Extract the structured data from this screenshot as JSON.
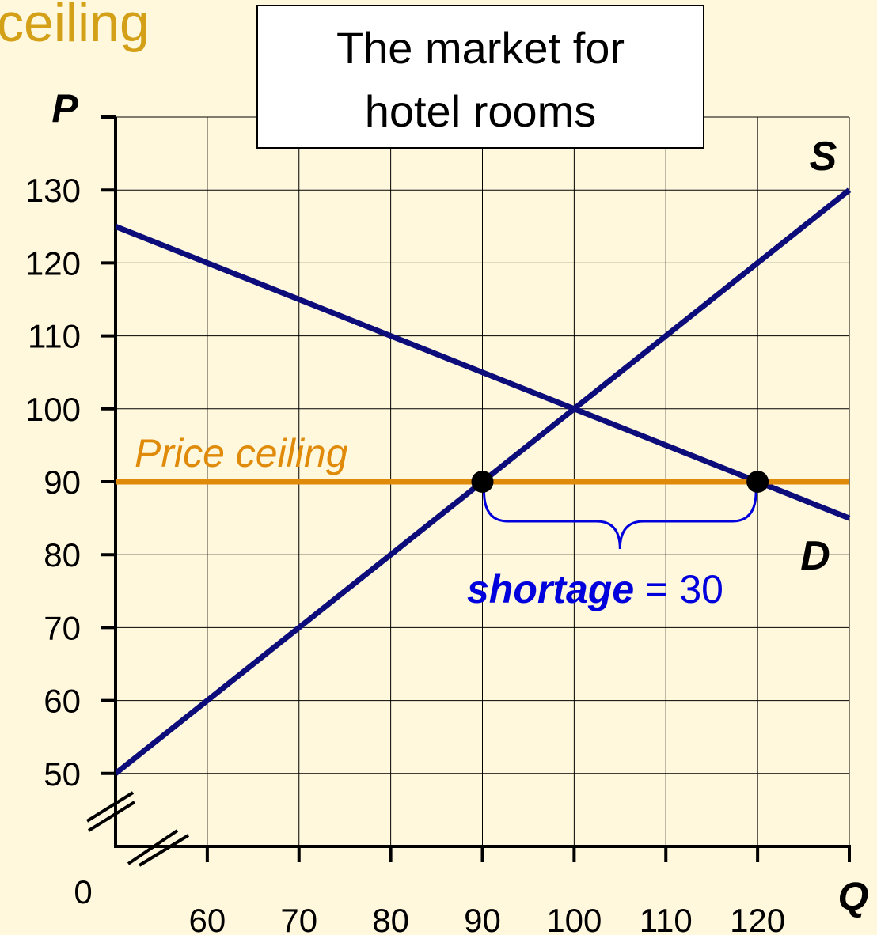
{
  "heading": "ceiling",
  "chart_data": {
    "type": "line",
    "title": [
      "The market for",
      "hotel rooms"
    ],
    "x_label": "Q",
    "y_label": "P",
    "origin_label": "0",
    "x": [
      50,
      130
    ],
    "xlim": [
      50,
      130
    ],
    "ylim": [
      40,
      140
    ],
    "xticks": [
      60,
      70,
      80,
      90,
      100,
      110,
      120
    ],
    "yticks": [
      50,
      60,
      70,
      80,
      90,
      100,
      110,
      120,
      130
    ],
    "grid": true,
    "series": [
      {
        "name": "S",
        "color": "#0c0c7a",
        "values": [
          50,
          130
        ]
      },
      {
        "name": "D",
        "color": "#0c0c7a",
        "values": [
          125,
          85
        ]
      },
      {
        "name": "Price ceiling",
        "color": "#e08a0a",
        "values": [
          90,
          90
        ]
      }
    ],
    "points": {
      "x": [
        90,
        120
      ],
      "y": [
        90,
        90
      ],
      "color": "#000000"
    },
    "shortage": {
      "label": "shortage",
      "sign": "=",
      "value": 30,
      "color": "#0000dd"
    }
  }
}
